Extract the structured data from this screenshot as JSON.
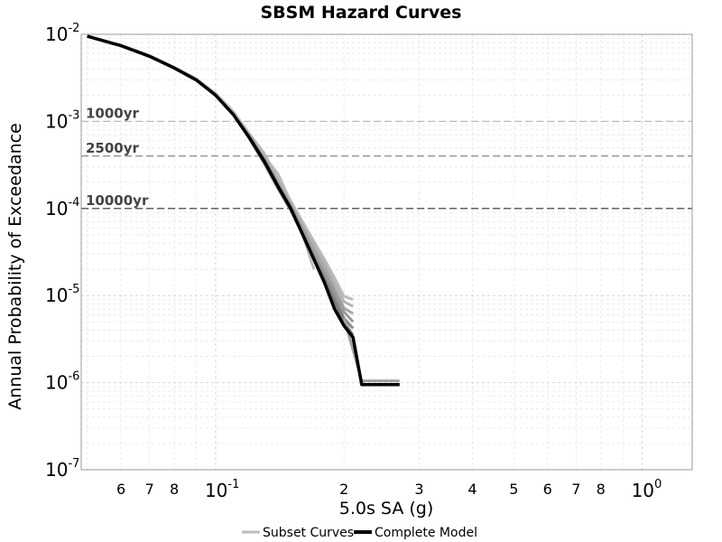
{
  "chart_data": {
    "type": "line",
    "title": "SBSM Hazard Curves",
    "xlabel": "5.0s SA (g)",
    "ylabel": "Annual Probability of Exceedance",
    "xscale": "log",
    "yscale": "log",
    "xlim": [
      0.05,
      10
    ],
    "ylim": [
      1e-07,
      0.01
    ],
    "grid": true,
    "legend_placement": "bottom-center",
    "x_tick_labels": [
      {
        "v": 0.06,
        "text": "6"
      },
      {
        "v": 0.07,
        "text": "7"
      },
      {
        "v": 0.08,
        "text": "8"
      },
      {
        "v": 0.1,
        "base": "10",
        "exp": "-1"
      },
      {
        "v": 0.2,
        "text": "2"
      },
      {
        "v": 0.3,
        "text": "3"
      },
      {
        "v": 0.4,
        "text": "4"
      },
      {
        "v": 0.5,
        "text": "5"
      },
      {
        "v": 0.6,
        "text": "6"
      },
      {
        "v": 0.7,
        "text": "7"
      },
      {
        "v": 0.8,
        "text": "8"
      },
      {
        "v": 1.0,
        "base": "10",
        "exp": "0"
      }
    ],
    "y_tick_labels": [
      {
        "v": 0.01,
        "base": "10",
        "exp": "-2"
      },
      {
        "v": 0.001,
        "base": "10",
        "exp": "-3"
      },
      {
        "v": 0.0001,
        "base": "10",
        "exp": "-4"
      },
      {
        "v": 1e-05,
        "base": "10",
        "exp": "-5"
      },
      {
        "v": 1e-06,
        "base": "10",
        "exp": "-6"
      },
      {
        "v": 1e-07,
        "base": "10",
        "exp": "-7"
      }
    ],
    "reference_lines": [
      {
        "label": "1000yr",
        "y": 0.001,
        "color": "#bbbbbb"
      },
      {
        "label": "2500yr",
        "y": 0.0004,
        "color": "#888888"
      },
      {
        "label": "10000yr",
        "y": 0.0001,
        "color": "#333333"
      }
    ],
    "series": [
      {
        "name": "Subset Curves",
        "role": "subset",
        "color": "#bdbdbd",
        "x": [
          0.05,
          0.06,
          0.07,
          0.08,
          0.09,
          0.1,
          0.11,
          0.12,
          0.13,
          0.14,
          0.15,
          0.16,
          0.17
        ],
        "y": [
          0.0095,
          0.0075,
          0.0057,
          0.0042,
          0.0031,
          0.0021,
          0.0013,
          0.0007,
          0.0004,
          0.00025,
          0.00012,
          5e-05,
          2e-05
        ]
      },
      {
        "role": "subset",
        "color": "#bdbdbd",
        "x": [
          0.05,
          0.06,
          0.07,
          0.08,
          0.09,
          0.1,
          0.11,
          0.12,
          0.13,
          0.14,
          0.15,
          0.16,
          0.17,
          0.18,
          0.19,
          0.2,
          0.21
        ],
        "y": [
          0.0095,
          0.0074,
          0.0056,
          0.0041,
          0.003,
          0.002,
          0.0013,
          0.00072,
          0.00043,
          0.00022,
          0.000122,
          7e-05,
          4.2e-05,
          2.6e-05,
          1.6e-05,
          9.8e-06,
          9e-06
        ]
      },
      {
        "role": "subset",
        "color": "#b3b3b3",
        "x": [
          0.05,
          0.06,
          0.07,
          0.08,
          0.09,
          0.1,
          0.11,
          0.12,
          0.13,
          0.14,
          0.15,
          0.16,
          0.17,
          0.18,
          0.19,
          0.2,
          0.21
        ],
        "y": [
          0.0095,
          0.0074,
          0.0056,
          0.0041,
          0.003,
          0.002,
          0.0012,
          0.0007,
          0.0004,
          0.00021,
          0.000115,
          6.5e-05,
          3.8e-05,
          2.4e-05,
          1.4e-05,
          8.5e-06,
          7.5e-06
        ]
      },
      {
        "role": "subset",
        "color": "#a6a6a6",
        "x": [
          0.05,
          0.06,
          0.07,
          0.08,
          0.09,
          0.1,
          0.11,
          0.12,
          0.13,
          0.14,
          0.15,
          0.16,
          0.17,
          0.18,
          0.19,
          0.2,
          0.21
        ],
        "y": [
          0.0095,
          0.0074,
          0.0056,
          0.0041,
          0.003,
          0.002,
          0.0012,
          0.00068,
          0.00038,
          0.0002,
          0.00011,
          6e-05,
          3.4e-05,
          2.1e-05,
          1.2e-05,
          7.2e-06,
          6.2e-06
        ]
      },
      {
        "role": "subset",
        "color": "#999999",
        "x": [
          0.05,
          0.06,
          0.07,
          0.08,
          0.09,
          0.1,
          0.11,
          0.12,
          0.13,
          0.14,
          0.15,
          0.16,
          0.17,
          0.18,
          0.19,
          0.2,
          0.21
        ],
        "y": [
          0.0095,
          0.0074,
          0.0056,
          0.0041,
          0.003,
          0.002,
          0.0012,
          0.00066,
          0.00036,
          0.00019,
          0.000105,
          5.6e-05,
          3e-05,
          1.8e-05,
          1.1e-05,
          6.5e-06,
          5e-06
        ]
      },
      {
        "role": "subset",
        "color": "#8c8c8c",
        "x": [
          0.05,
          0.06,
          0.07,
          0.08,
          0.09,
          0.1,
          0.11,
          0.12,
          0.13,
          0.14,
          0.15,
          0.16,
          0.17,
          0.18,
          0.19,
          0.2,
          0.21
        ],
        "y": [
          0.0095,
          0.0074,
          0.0056,
          0.0041,
          0.003,
          0.002,
          0.0012,
          0.00064,
          0.00034,
          0.00018,
          0.0001,
          5.2e-05,
          2.8e-05,
          1.6e-05,
          9.5e-06,
          5.5e-06,
          4.2e-06
        ]
      },
      {
        "role": "subset",
        "color": "#7a7a7a",
        "x": [
          0.05,
          0.06,
          0.07,
          0.08,
          0.09,
          0.1,
          0.11,
          0.12,
          0.13,
          0.14,
          0.15,
          0.16,
          0.17,
          0.18,
          0.19,
          0.2,
          0.21
        ],
        "y": [
          0.0095,
          0.0074,
          0.0056,
          0.0041,
          0.003,
          0.002,
          0.0012,
          0.00063,
          0.00033,
          0.00017,
          9.5e-05,
          5e-05,
          2.6e-05,
          1.5e-05,
          8.5e-06,
          5e-06,
          3.5e-06
        ]
      },
      {
        "role": "subset",
        "color": "#a0a0a0",
        "x": [
          0.2,
          0.22,
          0.25,
          0.27
        ],
        "y": [
          5.5e-06,
          1.05e-06,
          1.05e-06,
          1.05e-06
        ]
      },
      {
        "name": "Complete Model",
        "role": "complete",
        "color": "#000000",
        "x": [
          0.05,
          0.06,
          0.07,
          0.08,
          0.09,
          0.1,
          0.11,
          0.12,
          0.13,
          0.14,
          0.15,
          0.16,
          0.17,
          0.18,
          0.19,
          0.2,
          0.21,
          0.22,
          0.25,
          0.27
        ],
        "y": [
          0.0095,
          0.0074,
          0.0056,
          0.0041,
          0.003,
          0.002,
          0.0012,
          0.00065,
          0.00035,
          0.00018,
          0.0001,
          5e-05,
          2.6e-05,
          1.4e-05,
          7e-06,
          4.5e-06,
          3.3e-06,
          9.5e-07,
          9.5e-07,
          9.5e-07
        ]
      }
    ],
    "legend": [
      {
        "label": "Subset Curves",
        "color": "#bdbdbd"
      },
      {
        "label": "Complete Model",
        "color": "#000000"
      }
    ]
  }
}
